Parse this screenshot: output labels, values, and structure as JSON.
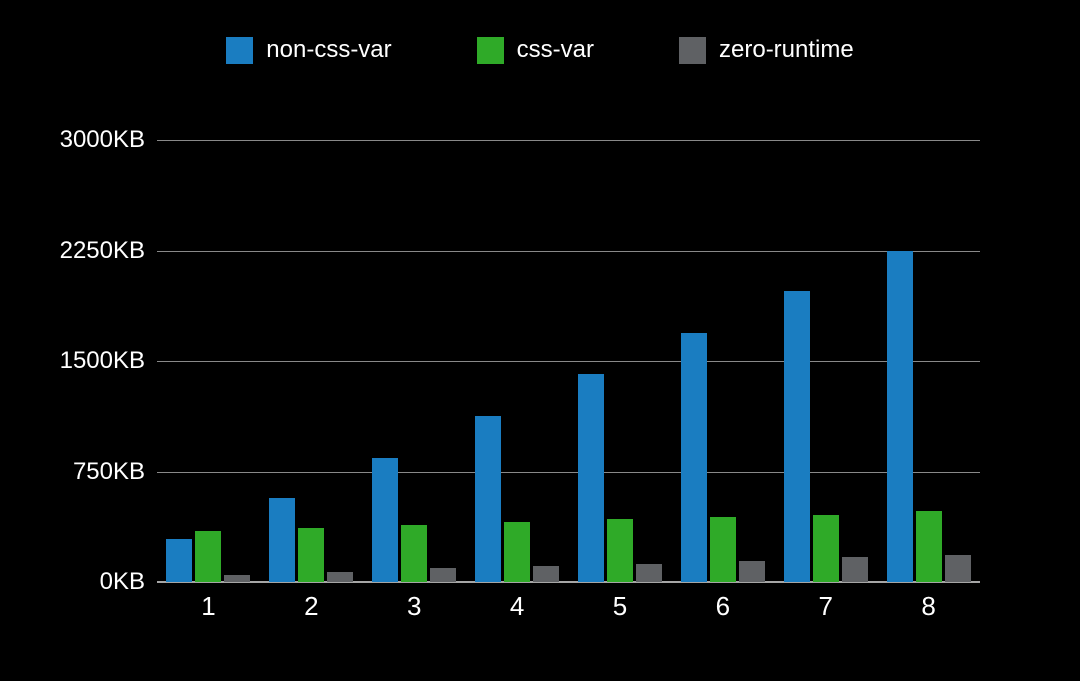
{
  "page": {
    "background_color": "#000000",
    "text_color": "#ffffff",
    "gridline_color": "#898989",
    "axis_line_color": "#a6a6a6"
  },
  "chart_data": {
    "type": "bar",
    "title": "",
    "unit": "KB",
    "categories": [
      "1",
      "2",
      "3",
      "4",
      "5",
      "6",
      "7",
      "8"
    ],
    "series": [
      {
        "name": "non-css-var",
        "color": "#1a7dc1",
        "values": [
          290,
          570,
          845,
          1125,
          1410,
          1690,
          1975,
          2250
        ]
      },
      {
        "name": "css-var",
        "color": "#2faa28",
        "values": [
          345,
          370,
          390,
          405,
          425,
          440,
          455,
          480
        ]
      },
      {
        "name": "zero-runtime",
        "color": "#5f6164",
        "values": [
          45,
          70,
          95,
          110,
          125,
          145,
          170,
          185
        ]
      }
    ],
    "ylim": [
      0,
      3000
    ],
    "yticks": [
      0,
      750,
      1500,
      2250,
      3000
    ],
    "ytick_labels": [
      "0KB",
      "750KB",
      "1500KB",
      "2250KB",
      "3000KB"
    ],
    "grid": true,
    "legend_position": "top",
    "legend_labels": [
      "non-css-var",
      "css-var",
      "zero-runtime"
    ]
  }
}
